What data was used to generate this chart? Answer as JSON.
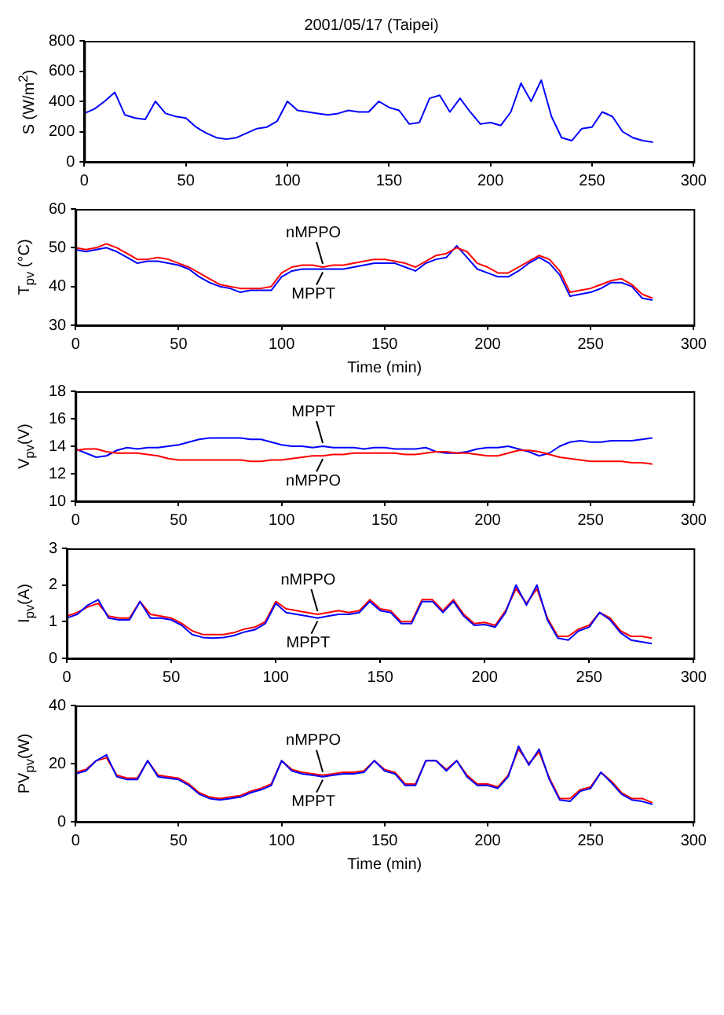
{
  "chart_data": [
    {
      "type": "line",
      "title": "2001/05/17 (Taipei)",
      "ylabel": "S (W/m$^{2}$)",
      "x": [
        0,
        5,
        10,
        15,
        20,
        25,
        30,
        35,
        40,
        45,
        50,
        55,
        60,
        65,
        70,
        75,
        80,
        85,
        90,
        95,
        100,
        105,
        110,
        115,
        120,
        125,
        130,
        135,
        140,
        145,
        150,
        155,
        160,
        165,
        170,
        175,
        180,
        185,
        190,
        195,
        200,
        205,
        210,
        215,
        220,
        225,
        230,
        235,
        240,
        245,
        250,
        255,
        260,
        265,
        270,
        275,
        280
      ],
      "xlim": [
        0,
        300
      ],
      "xticks": [
        0,
        50,
        100,
        150,
        200,
        250,
        300
      ],
      "ylim": [
        0,
        800
      ],
      "yticks": [
        0,
        200,
        400,
        600,
        800
      ],
      "series": [
        {
          "color": "#0000ff",
          "values": [
            320,
            350,
            400,
            460,
            310,
            290,
            280,
            400,
            320,
            300,
            290,
            230,
            190,
            160,
            150,
            160,
            190,
            220,
            230,
            270,
            400,
            340,
            330,
            320,
            310,
            320,
            340,
            330,
            330,
            400,
            360,
            340,
            250,
            260,
            420,
            440,
            330,
            420,
            330,
            250,
            260,
            240,
            330,
            520,
            400,
            540,
            300,
            160,
            140,
            220,
            230,
            330,
            300,
            200,
            160,
            140,
            130
          ]
        }
      ]
    },
    {
      "type": "line",
      "ylabel": "T$_{pv}$ (°C)",
      "xlabel": "Time (min)",
      "x": [
        0,
        5,
        10,
        15,
        20,
        25,
        30,
        35,
        40,
        45,
        50,
        55,
        60,
        65,
        70,
        75,
        80,
        85,
        90,
        95,
        100,
        105,
        110,
        115,
        120,
        125,
        130,
        135,
        140,
        145,
        150,
        155,
        160,
        165,
        170,
        175,
        180,
        185,
        190,
        195,
        200,
        205,
        210,
        215,
        220,
        225,
        230,
        235,
        240,
        245,
        250,
        255,
        260,
        265,
        270,
        275,
        280
      ],
      "xlim": [
        0,
        300
      ],
      "xticks": [
        0,
        50,
        100,
        150,
        200,
        250,
        300
      ],
      "ylim": [
        30,
        60
      ],
      "yticks": [
        30,
        40,
        50,
        60
      ],
      "series": [
        {
          "name": "nMPPO",
          "color": "#ff0000",
          "values": [
            50,
            49.5,
            50,
            51,
            50,
            48.5,
            47,
            47,
            47.5,
            47,
            46,
            45,
            43.5,
            42,
            40.5,
            40,
            39.5,
            39.5,
            39.5,
            40,
            43.5,
            45,
            45.5,
            45.5,
            45,
            45.5,
            45.5,
            46,
            46.5,
            47,
            47,
            46.5,
            46,
            45,
            46.5,
            48,
            48.5,
            50,
            49,
            46,
            45,
            43.5,
            43.5,
            45,
            46.5,
            48,
            47,
            44,
            38.5,
            39,
            39.5,
            40.5,
            41.5,
            42,
            40.5,
            38,
            37
          ]
        },
        {
          "name": "MPPT",
          "color": "#0000ff",
          "values": [
            49.5,
            49,
            49.5,
            50,
            49,
            47.5,
            46,
            46.5,
            46.5,
            46,
            45.5,
            44.5,
            42.5,
            41,
            40,
            39.5,
            38.5,
            39,
            39,
            39,
            42.5,
            44,
            44.5,
            44.5,
            44.5,
            44.5,
            44.5,
            45,
            45.5,
            46,
            46,
            46,
            45,
            44,
            46,
            47,
            47.5,
            50.5,
            47.5,
            44.5,
            43.5,
            42.5,
            42.5,
            44,
            46,
            47.5,
            46,
            43,
            37.5,
            38,
            38.5,
            39.5,
            41,
            41,
            40,
            37,
            36.5
          ]
        }
      ]
    },
    {
      "type": "line",
      "ylabel": "V$_{pv}$(V)",
      "x": [
        0,
        5,
        10,
        15,
        20,
        25,
        30,
        35,
        40,
        45,
        50,
        55,
        60,
        65,
        70,
        75,
        80,
        85,
        90,
        95,
        100,
        105,
        110,
        115,
        120,
        125,
        130,
        135,
        140,
        145,
        150,
        155,
        160,
        165,
        170,
        175,
        180,
        185,
        190,
        195,
        200,
        205,
        210,
        215,
        220,
        225,
        230,
        235,
        240,
        245,
        250,
        255,
        260,
        265,
        270,
        275,
        280
      ],
      "xlim": [
        0,
        300
      ],
      "xticks": [
        0,
        50,
        100,
        150,
        200,
        250,
        300
      ],
      "ylim": [
        10,
        18
      ],
      "yticks": [
        10,
        12,
        14,
        16,
        18
      ],
      "series": [
        {
          "name": "nMPPO",
          "color": "#ff0000",
          "values": [
            13.7,
            13.8,
            13.8,
            13.6,
            13.5,
            13.5,
            13.5,
            13.4,
            13.3,
            13.1,
            13.0,
            13.0,
            13.0,
            13.0,
            13.0,
            13.0,
            13.0,
            12.9,
            12.9,
            13.0,
            13.0,
            13.1,
            13.2,
            13.3,
            13.3,
            13.4,
            13.4,
            13.5,
            13.5,
            13.5,
            13.5,
            13.5,
            13.4,
            13.4,
            13.5,
            13.6,
            13.6,
            13.5,
            13.5,
            13.4,
            13.3,
            13.3,
            13.5,
            13.7,
            13.7,
            13.6,
            13.4,
            13.2,
            13.1,
            13.0,
            12.9,
            12.9,
            12.9,
            12.9,
            12.8,
            12.8,
            12.7
          ]
        },
        {
          "name": "MPPT",
          "color": "#0000ff",
          "values": [
            13.8,
            13.5,
            13.2,
            13.3,
            13.7,
            13.9,
            13.8,
            13.9,
            13.9,
            14.0,
            14.1,
            14.3,
            14.5,
            14.6,
            14.6,
            14.6,
            14.6,
            14.5,
            14.5,
            14.3,
            14.1,
            14.0,
            14.0,
            13.9,
            14.0,
            13.9,
            13.9,
            13.9,
            13.8,
            13.9,
            13.9,
            13.8,
            13.8,
            13.8,
            13.9,
            13.6,
            13.5,
            13.5,
            13.6,
            13.8,
            13.9,
            13.9,
            14.0,
            13.8,
            13.6,
            13.3,
            13.5,
            14.0,
            14.3,
            14.4,
            14.3,
            14.3,
            14.4,
            14.4,
            14.4,
            14.5,
            14.6
          ]
        }
      ]
    },
    {
      "type": "line",
      "ylabel": "I$_{pv}$(A)",
      "x": [
        0,
        5,
        10,
        15,
        20,
        25,
        30,
        35,
        40,
        45,
        50,
        55,
        60,
        65,
        70,
        75,
        80,
        85,
        90,
        95,
        100,
        105,
        110,
        115,
        120,
        125,
        130,
        135,
        140,
        145,
        150,
        155,
        160,
        165,
        170,
        175,
        180,
        185,
        190,
        195,
        200,
        205,
        210,
        215,
        220,
        225,
        230,
        235,
        240,
        245,
        250,
        255,
        260,
        265,
        270,
        275,
        280
      ],
      "xlim": [
        0,
        300
      ],
      "xticks": [
        0,
        50,
        100,
        150,
        200,
        250,
        300
      ],
      "ylim": [
        0,
        3
      ],
      "yticks": [
        0,
        1,
        2,
        3
      ],
      "series": [
        {
          "name": "MPPT",
          "color": "#0000ff",
          "values": [
            1.1,
            1.2,
            1.45,
            1.6,
            1.1,
            1.05,
            1.05,
            1.55,
            1.1,
            1.1,
            1.05,
            0.9,
            0.65,
            0.57,
            0.55,
            0.57,
            0.62,
            0.72,
            0.78,
            0.95,
            1.5,
            1.25,
            1.2,
            1.15,
            1.1,
            1.15,
            1.2,
            1.2,
            1.25,
            1.55,
            1.3,
            1.25,
            0.95,
            0.95,
            1.55,
            1.55,
            1.25,
            1.55,
            1.15,
            0.9,
            0.92,
            0.85,
            1.25,
            2.0,
            1.45,
            2.0,
            1.05,
            0.55,
            0.5,
            0.75,
            0.85,
            1.25,
            1.05,
            0.7,
            0.5,
            0.45,
            0.4
          ]
        },
        {
          "name": "nMPPO",
          "color": "#ff0000",
          "values": [
            1.15,
            1.25,
            1.4,
            1.5,
            1.15,
            1.1,
            1.1,
            1.55,
            1.2,
            1.15,
            1.1,
            0.95,
            0.75,
            0.65,
            0.65,
            0.65,
            0.7,
            0.8,
            0.85,
            1.0,
            1.55,
            1.35,
            1.3,
            1.25,
            1.2,
            1.25,
            1.3,
            1.25,
            1.3,
            1.6,
            1.35,
            1.3,
            1.0,
            1.0,
            1.6,
            1.6,
            1.3,
            1.6,
            1.2,
            0.95,
            0.98,
            0.9,
            1.3,
            1.9,
            1.5,
            1.9,
            1.1,
            0.6,
            0.6,
            0.8,
            0.9,
            1.25,
            1.1,
            0.75,
            0.6,
            0.6,
            0.55
          ]
        }
      ]
    },
    {
      "type": "line",
      "ylabel": "PV$_{pv}$(W)",
      "xlabel": "Time (min)",
      "x": [
        0,
        5,
        10,
        15,
        20,
        25,
        30,
        35,
        40,
        45,
        50,
        55,
        60,
        65,
        70,
        75,
        80,
        85,
        90,
        95,
        100,
        105,
        110,
        115,
        120,
        125,
        130,
        135,
        140,
        145,
        150,
        155,
        160,
        165,
        170,
        175,
        180,
        185,
        190,
        195,
        200,
        205,
        210,
        215,
        220,
        225,
        230,
        235,
        240,
        245,
        250,
        255,
        260,
        265,
        270,
        275,
        280
      ],
      "xlim": [
        0,
        300
      ],
      "xticks": [
        0,
        50,
        100,
        150,
        200,
        250,
        300
      ],
      "ylim": [
        0,
        40
      ],
      "yticks": [
        0,
        20,
        40
      ],
      "series": [
        {
          "name": "MPPT",
          "color": "#0000ff",
          "values": [
            16.5,
            17.5,
            21,
            23,
            15.5,
            14.5,
            14.5,
            21,
            15.5,
            15,
            14.5,
            12.5,
            9.5,
            8,
            7.5,
            8,
            8.5,
            10,
            11,
            12.5,
            21,
            17.5,
            16.5,
            16,
            15.5,
            16,
            16.5,
            16.5,
            17,
            21,
            17.5,
            16.5,
            12.5,
            12.5,
            21,
            21,
            17.5,
            21,
            15.5,
            12.5,
            12.5,
            11.5,
            15.5,
            26,
            19.5,
            25,
            14.5,
            7.5,
            7,
            10.5,
            11.5,
            17,
            13.5,
            9.5,
            7.5,
            7,
            6
          ]
        },
        {
          "name": "nMPPO",
          "color": "#ff0000",
          "values": [
            17,
            18,
            21,
            22,
            16,
            15,
            15,
            21,
            16,
            15.5,
            15,
            13,
            10,
            8.5,
            8,
            8.5,
            9,
            10.5,
            11.5,
            13,
            21,
            18,
            17,
            16.5,
            16,
            16.5,
            17,
            17,
            17.5,
            21,
            18,
            17,
            13,
            13,
            21,
            21,
            18,
            21,
            16,
            13,
            13,
            12,
            16,
            25,
            20,
            24,
            15,
            8,
            8,
            11,
            12,
            17,
            14,
            10,
            8,
            8,
            6.5
          ]
        }
      ]
    }
  ]
}
